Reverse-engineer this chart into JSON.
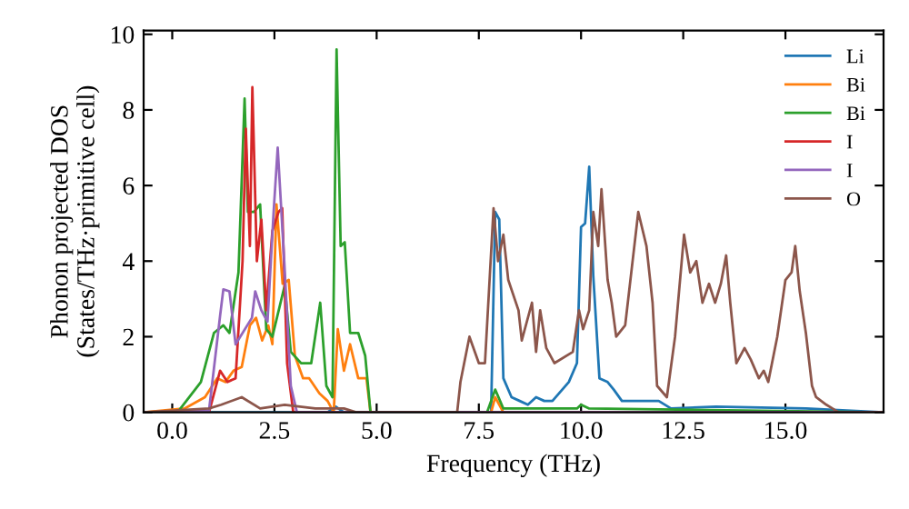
{
  "chart_data": {
    "type": "line",
    "xlabel": "Frequency (THz)",
    "ylabel": "Phonon projected DOS\n(States/THz·primitive cell)",
    "xlim": [
      -0.7,
      17.4
    ],
    "ylim": [
      0,
      10.1
    ],
    "xticks": [
      {
        "value": 0,
        "label": "0.0"
      },
      {
        "value": 2.5,
        "label": "2.5"
      },
      {
        "value": 5,
        "label": "5.0"
      },
      {
        "value": 7.5,
        "label": "7.5"
      },
      {
        "value": 10,
        "label": "10.0"
      },
      {
        "value": 12.5,
        "label": "12.5"
      },
      {
        "value": 15,
        "label": "15.0"
      }
    ],
    "yticks": [
      0,
      2,
      4,
      6,
      8,
      10
    ],
    "grid": false,
    "legend": "top right",
    "marker": "none",
    "line_style": "solid",
    "series": [
      {
        "name": "Li",
        "color": "#1f77b4",
        "x": [
          -0.7,
          3.8,
          4.0,
          4.2,
          7.8,
          7.9,
          8.0,
          8.1,
          8.3,
          8.5,
          8.7,
          8.9,
          9.1,
          9.3,
          9.7,
          9.9,
          10.0,
          10.1,
          10.2,
          10.3,
          10.45,
          10.65,
          10.8,
          11.0,
          11.4,
          11.9,
          12.2,
          13.3,
          15.5,
          17.4
        ],
        "values": [
          0,
          0,
          0.15,
          0,
          0,
          5.3,
          5.1,
          0.9,
          0.4,
          0.3,
          0.2,
          0.4,
          0.3,
          0.3,
          0.8,
          1.3,
          4.9,
          5.0,
          6.5,
          3.6,
          0.9,
          0.8,
          0.6,
          0.3,
          0.3,
          0.3,
          0.1,
          0.15,
          0.1,
          0
        ]
      },
      {
        "name": "Bi",
        "color": "#ff7f0e",
        "x": [
          -0.7,
          0.3,
          0.8,
          1.1,
          1.3,
          1.5,
          1.7,
          1.9,
          2.05,
          2.2,
          2.35,
          2.45,
          2.55,
          2.7,
          2.85,
          3.0,
          3.2,
          3.35,
          3.6,
          3.8,
          3.95,
          4.05,
          4.2,
          4.35,
          4.55,
          4.75,
          4.85,
          7.8,
          7.9,
          8.1,
          17.4
        ],
        "values": [
          0,
          0.1,
          0.4,
          0.9,
          0.8,
          1.1,
          1.2,
          2.3,
          2.5,
          1.9,
          2.3,
          1.8,
          5.5,
          3.4,
          3.5,
          1.5,
          0.9,
          0.9,
          0.5,
          0.3,
          0,
          2.2,
          1.1,
          1.8,
          0.9,
          0.9,
          0,
          0,
          0.4,
          0,
          0
        ]
      },
      {
        "name": "Bi",
        "color": "#2ca02c",
        "x": [
          -0.7,
          0.13,
          0.7,
          1.02,
          1.25,
          1.4,
          1.62,
          1.77,
          1.85,
          2.0,
          2.15,
          2.3,
          2.45,
          2.75,
          2.9,
          3.15,
          3.4,
          3.62,
          3.77,
          3.92,
          4.02,
          4.12,
          4.22,
          4.35,
          4.55,
          4.72,
          4.85,
          7.7,
          7.9,
          8.1,
          9.9,
          10.0,
          10.2,
          17.4
        ],
        "values": [
          0,
          0,
          0.8,
          2.1,
          2.3,
          2.1,
          3.7,
          8.3,
          5.3,
          5.3,
          5.5,
          2.2,
          2.0,
          3.35,
          1.6,
          1.3,
          1.3,
          2.9,
          0.7,
          0.4,
          9.6,
          4.4,
          4.5,
          2.1,
          2.1,
          1.5,
          0,
          0,
          0.6,
          0.1,
          0.1,
          0.2,
          0.1,
          0
        ]
      },
      {
        "name": "I",
        "color": "#d62728",
        "x": [
          -0.7,
          0.9,
          1.17,
          1.35,
          1.55,
          1.72,
          1.8,
          1.9,
          1.96,
          2.07,
          2.18,
          2.3,
          2.45,
          2.6,
          2.69,
          2.81,
          2.96,
          17.4
        ],
        "values": [
          0,
          0,
          1.1,
          0.8,
          0.9,
          4.0,
          7.5,
          4.4,
          8.6,
          4.0,
          5.1,
          2.7,
          4.8,
          5.3,
          5.4,
          1.3,
          0,
          0
        ]
      },
      {
        "name": "I",
        "color": "#9467bd",
        "x": [
          -0.7,
          0.9,
          1.17,
          1.25,
          1.4,
          1.55,
          1.95,
          2.03,
          2.18,
          2.33,
          2.48,
          2.58,
          2.74,
          2.9,
          3.05,
          17.4
        ],
        "values": [
          0,
          0.05,
          2.55,
          3.25,
          3.2,
          1.8,
          2.5,
          3.2,
          2.7,
          2.4,
          5.3,
          7.0,
          4.0,
          0.7,
          0,
          0
        ]
      },
      {
        "name": "O",
        "color": "#8c564b",
        "x": [
          -0.7,
          0.9,
          1.2,
          1.7,
          2.15,
          2.75,
          3.5,
          4.2,
          4.5,
          6.97,
          7.05,
          7.27,
          7.5,
          7.65,
          7.86,
          7.97,
          8.1,
          8.22,
          8.47,
          8.55,
          8.8,
          8.9,
          9.0,
          9.15,
          9.35,
          9.8,
          9.95,
          10.05,
          10.2,
          10.3,
          10.42,
          10.5,
          10.65,
          10.75,
          10.86,
          11.08,
          11.4,
          11.6,
          11.75,
          11.86,
          12.1,
          12.3,
          12.52,
          12.67,
          12.82,
          12.97,
          13.13,
          13.28,
          13.42,
          13.55,
          13.65,
          13.8,
          14.0,
          14.15,
          14.35,
          14.47,
          14.58,
          14.8,
          15.0,
          15.15,
          15.24,
          15.35,
          15.5,
          15.65,
          15.75,
          16.0,
          16.15,
          16.3,
          17.4
        ],
        "values": [
          0,
          0.1,
          0.2,
          0.4,
          0.1,
          0.2,
          0.1,
          0.1,
          0,
          0,
          0.8,
          2.0,
          1.3,
          1.3,
          5.4,
          4.0,
          4.7,
          3.5,
          2.7,
          1.9,
          2.9,
          1.6,
          2.7,
          1.7,
          1.3,
          1.6,
          2.7,
          2.2,
          2.7,
          5.3,
          4.4,
          5.9,
          3.5,
          2.9,
          2.0,
          2.3,
          5.3,
          4.4,
          2.9,
          0.7,
          0.4,
          2.0,
          4.7,
          3.7,
          4.0,
          2.9,
          3.4,
          2.9,
          3.4,
          4.15,
          2.9,
          1.3,
          1.7,
          1.4,
          0.9,
          1.1,
          0.8,
          2.0,
          3.5,
          3.7,
          4.4,
          3.2,
          2.1,
          0.7,
          0.4,
          0.2,
          0.1,
          0,
          0
        ]
      }
    ]
  }
}
